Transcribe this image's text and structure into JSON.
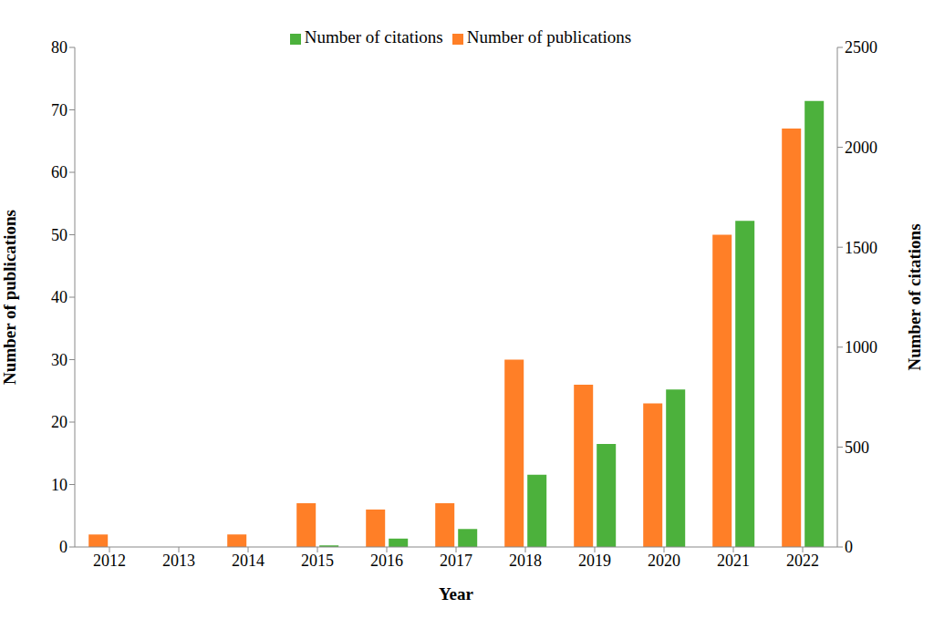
{
  "chart_data": {
    "type": "bar",
    "x_label": "Year",
    "y_label": "Number of publications",
    "y2_label": "Number of citations",
    "categories": [
      "2012",
      "2013",
      "2014",
      "2015",
      "2016",
      "2017",
      "2018",
      "2019",
      "2020",
      "2021",
      "2022"
    ],
    "series": [
      {
        "name": "Number of publications",
        "color": "#ff7f27",
        "values": [
          2,
          0,
          2,
          7,
          6,
          7,
          30,
          26,
          23,
          50,
          67
        ]
      },
      {
        "name": "Number of citations",
        "color": "#4cb13c",
        "axis": "y2",
        "values": [
          0,
          0,
          0,
          8,
          42,
          90,
          362,
          516,
          788,
          1632,
          2232
        ]
      }
    ],
    "ylim": [
      0,
      80
    ],
    "yticks": [
      0,
      10,
      20,
      30,
      40,
      50,
      60,
      70,
      80
    ],
    "y2lim": [
      0,
      2500
    ],
    "y2ticks": [
      0,
      500,
      1000,
      1500,
      2000,
      2500
    ],
    "legend": "top",
    "grid": false
  }
}
